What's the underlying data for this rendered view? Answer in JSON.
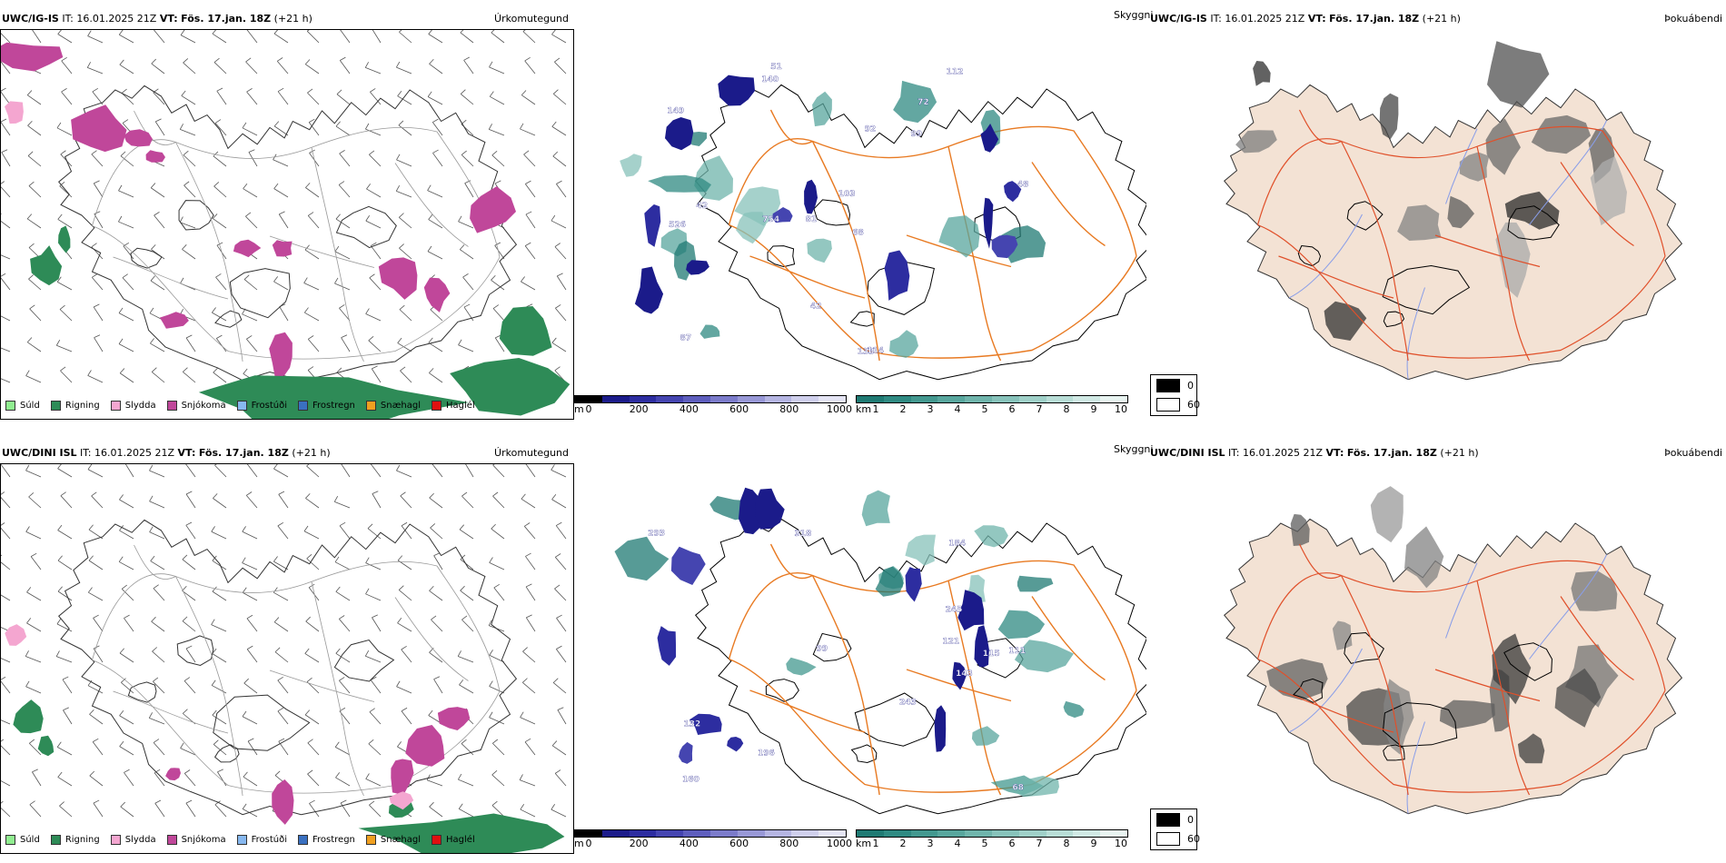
{
  "rows": [
    {
      "model": "UWC/IG-IS",
      "it_label": "IT:",
      "it_value": "16.01.2025 21Z",
      "vt_label": "VT:",
      "vt_value": "Fös. 17.jan. 18Z",
      "lead": "(+21 h)",
      "precip_title": "Úrkomutegund",
      "sky_title": "Skyggni",
      "fog_title": "Þokuábendi"
    },
    {
      "model": "UWC/DINI ISL",
      "it_label": "IT:",
      "it_value": "16.01.2025 21Z",
      "vt_label": "VT:",
      "vt_value": "Fös. 17.jan. 18Z",
      "lead": "(+21 h)",
      "precip_title": "Úrkomutegund",
      "sky_title": "Skyggni",
      "fog_title": "Þokuábendi"
    }
  ],
  "precip_legend": [
    {
      "label": "Súld",
      "color": "#90ee90"
    },
    {
      "label": "Rigning",
      "color": "#2e8b57"
    },
    {
      "label": "Slydda",
      "color": "#f4a6d0"
    },
    {
      "label": "Snjókoma",
      "color": "#c0479a"
    },
    {
      "label": "Frostúði",
      "color": "#87b8f0"
    },
    {
      "label": "Frostregn",
      "color": "#3a70c0"
    },
    {
      "label": "Snæhagl",
      "color": "#f0a020"
    },
    {
      "label": "Haglél",
      "color": "#e01010"
    }
  ],
  "ceiling_bar": {
    "unit": "m",
    "ticks": [
      "0",
      "200",
      "400",
      "600",
      "800",
      "1000"
    ],
    "colors": [
      "#000000",
      "#1b1b8a",
      "#2d2da0",
      "#4545b0",
      "#5e5ebd",
      "#7b7bca",
      "#9898d6",
      "#b5b5e2",
      "#cfcfec",
      "#e4e4f4"
    ]
  },
  "visibility_bar": {
    "unit": "km",
    "ticks": [
      "1",
      "2",
      "3",
      "4",
      "5",
      "6",
      "7",
      "8",
      "9",
      "10"
    ],
    "colors": [
      "#1f7a73",
      "#2f8a82",
      "#43988f",
      "#58a69d",
      "#6fb4ab",
      "#87c2ba",
      "#9fd0c8",
      "#b8ddd6",
      "#d0e9e4",
      "#e8f4f1"
    ]
  },
  "fog_legend": {
    "values": [
      "0",
      "60"
    ],
    "colors": [
      "#000000",
      "#ffffff"
    ]
  },
  "ceiling_labels": [
    [
      "51",
      "72",
      "48",
      "81",
      "68",
      "42",
      "149",
      "99",
      "526",
      "92",
      "103",
      "87",
      "140",
      "754",
      "133",
      "114",
      "42",
      "112"
    ],
    [
      "99",
      "132",
      "143",
      "293",
      "111",
      "115",
      "121",
      "184",
      "318",
      "160",
      "68",
      "243",
      "196",
      "245"
    ]
  ],
  "colors": {
    "precip_snow": "#c0479a",
    "precip_rain": "#2e8b57",
    "precip_sleet": "#f4a6d0",
    "roads": "#e87a22",
    "sky_fill": "#ffffff",
    "fog_land": "#f3e2d4",
    "fog_roads": "#e0502a",
    "fog_rivers": "#8a9ee8"
  }
}
